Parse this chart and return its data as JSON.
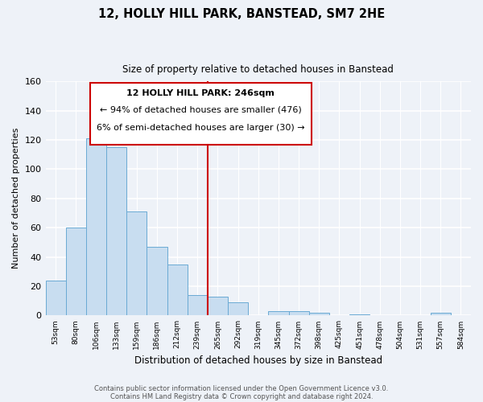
{
  "title": "12, HOLLY HILL PARK, BANSTEAD, SM7 2HE",
  "subtitle": "Size of property relative to detached houses in Banstead",
  "xlabel": "Distribution of detached houses by size in Banstead",
  "ylabel": "Number of detached properties",
  "bar_labels": [
    "53sqm",
    "80sqm",
    "106sqm",
    "133sqm",
    "159sqm",
    "186sqm",
    "212sqm",
    "239sqm",
    "265sqm",
    "292sqm",
    "319sqm",
    "345sqm",
    "372sqm",
    "398sqm",
    "425sqm",
    "451sqm",
    "478sqm",
    "504sqm",
    "531sqm",
    "557sqm",
    "584sqm"
  ],
  "bar_heights": [
    24,
    60,
    121,
    115,
    71,
    47,
    35,
    14,
    13,
    9,
    0,
    3,
    3,
    2,
    0,
    1,
    0,
    0,
    0,
    2,
    0
  ],
  "bar_color": "#c8ddf0",
  "bar_edge_color": "#6aaad4",
  "vline_x": 7.5,
  "vline_color": "#cc0000",
  "ylim": [
    0,
    160
  ],
  "yticks": [
    0,
    20,
    40,
    60,
    80,
    100,
    120,
    140,
    160
  ],
  "annotation_title": "12 HOLLY HILL PARK: 246sqm",
  "annotation_line1": "← 94% of detached houses are smaller (476)",
  "annotation_line2": "6% of semi-detached houses are larger (30) →",
  "annotation_box_color": "#ffffff",
  "annotation_box_edge": "#cc0000",
  "footer1": "Contains HM Land Registry data © Crown copyright and database right 2024.",
  "footer2": "Contains public sector information licensed under the Open Government Licence v3.0.",
  "bg_color": "#eef2f8"
}
